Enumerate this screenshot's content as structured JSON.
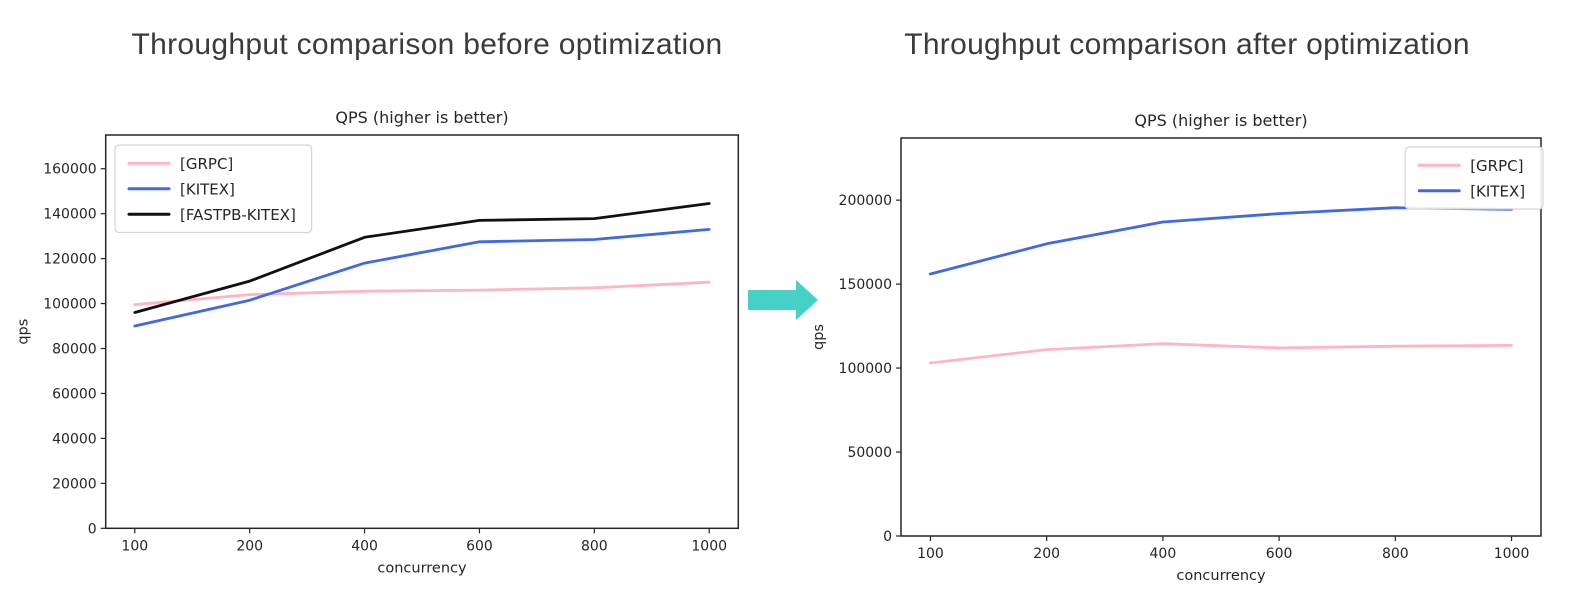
{
  "slide": {
    "background": "#ffffff",
    "arrow_color": "#45d1c5",
    "heading_color": "#3b3b3b"
  },
  "chart_data": [
    {
      "type": "line",
      "panel_heading": "Throughput comparison before optimization",
      "title": "QPS (higher is better)",
      "xlabel": "concurrency",
      "ylabel": "qps",
      "x_categories": [
        "100",
        "200",
        "400",
        "600",
        "800",
        "1000"
      ],
      "series": [
        {
          "name": "[GRPC]",
          "color": "#ffb6c1",
          "values": [
            99500,
            104000,
            105500,
            106000,
            107000,
            109500
          ]
        },
        {
          "name": "[KITEX]",
          "color": "#4169e1",
          "values": [
            90000,
            101500,
            118000,
            127500,
            128500,
            133000
          ]
        },
        {
          "name": "[FASTPB-KITEX]",
          "color": "#111111",
          "values": [
            96000,
            110000,
            129500,
            137000,
            137800,
            144500
          ]
        }
      ],
      "ylim": [
        0,
        175000
      ],
      "yticks": [
        0,
        20000,
        40000,
        60000,
        80000,
        100000,
        120000,
        140000,
        160000
      ],
      "legend_position": "upper-left",
      "grid": false
    },
    {
      "type": "line",
      "panel_heading": "Throughput comparison after optimization",
      "title": "QPS (higher is better)",
      "xlabel": "concurrency",
      "ylabel": "qps",
      "x_categories": [
        "100",
        "200",
        "400",
        "600",
        "800",
        "1000"
      ],
      "series": [
        {
          "name": "[GRPC]",
          "color": "#ffb6c1",
          "values": [
            103000,
            111000,
            114500,
            112000,
            113000,
            113500
          ]
        },
        {
          "name": "[KITEX]",
          "color": "#4169e1",
          "values": [
            156000,
            174000,
            187000,
            192000,
            195500,
            194500
          ]
        }
      ],
      "ylim": [
        0,
        237000
      ],
      "yticks": [
        0,
        50000,
        100000,
        150000,
        200000
      ],
      "legend_position": "upper-right",
      "grid": false
    }
  ]
}
